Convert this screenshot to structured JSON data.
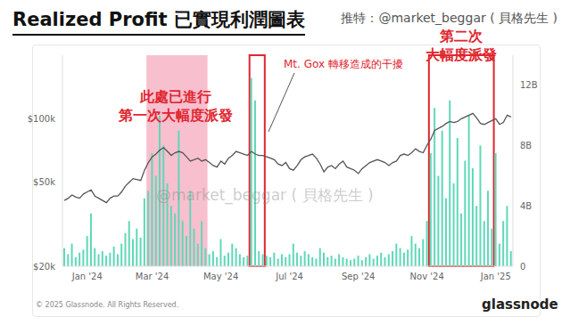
{
  "chart_data": {
    "type": "combo",
    "title": "Realized Profit 已實現利潤圖表",
    "subtitle": "推特：@market_beggar ( 貝格先生 )",
    "watermark": "@market_beggar ( 貝格先生 )",
    "annotations": [
      {
        "text": "此處已進行\n第一次大幅度派發"
      },
      {
        "text": "Mt. Gox 轉移造成的干擾"
      },
      {
        "text": "第二次\n大幅度派發"
      }
    ],
    "source": "© 2025 Glassnode. All Rights Reserved.",
    "logo": "glassnode",
    "grid": false,
    "log": "y",
    "categories": [
      null,
      null,
      null,
      null,
      null,
      null,
      "Jan '24",
      null,
      null,
      null,
      null,
      null,
      null,
      null,
      null,
      null,
      null,
      null,
      null,
      null,
      null,
      null,
      null,
      "Mar '24",
      null,
      null,
      null,
      null,
      null,
      null,
      null,
      null,
      null,
      null,
      null,
      null,
      null,
      null,
      null,
      null,
      null,
      "May '24",
      null,
      null,
      null,
      null,
      null,
      null,
      null,
      null,
      null,
      null,
      null,
      null,
      null,
      null,
      null,
      null,
      null,
      "Jul '24",
      null,
      null,
      null,
      null,
      null,
      null,
      null,
      null,
      null,
      null,
      null,
      null,
      null,
      null,
      null,
      null,
      null,
      "Sep '24",
      null,
      null,
      null,
      null,
      null,
      null,
      null,
      null,
      null,
      null,
      null,
      null,
      null,
      null,
      null,
      null,
      null,
      "Nov '24",
      null,
      null,
      null,
      null,
      null,
      null,
      null,
      null,
      null,
      null,
      null,
      null,
      null,
      null,
      null,
      null,
      null,
      "Jan '25",
      null,
      null,
      null,
      null
    ],
    "ylim": [
      20000,
      200000
    ],
    "yticks": [
      {
        "value": 20000,
        "label": "$20k"
      },
      {
        "value": 50000,
        "label": "$50k"
      },
      {
        "value": 100000,
        "label": "$100k"
      }
    ],
    "y2lim": [
      0,
      14
    ],
    "y2ticks": [
      0,
      {
        "value": 4,
        "label": "4B"
      },
      {
        "value": 8,
        "label": "8B"
      },
      {
        "value": 12,
        "label": "12B"
      }
    ],
    "series": [
      {
        "type": "bar",
        "axis": "y2",
        "color": "#5fd8b8",
        "values": [
          1.2,
          0.8,
          1.5,
          0.6,
          0.9,
          1.1,
          2.0,
          3.5,
          1.2,
          0.8,
          1.0,
          0.7,
          0.9,
          1.3,
          0.8,
          1.5,
          2.2,
          3.0,
          1.8,
          2.5,
          1.9,
          4.5,
          5.0,
          7.5,
          6.0,
          10.0,
          8.0,
          5.5,
          4.0,
          3.5,
          9.0,
          3.0,
          2.0,
          5.0,
          2.5,
          1.5,
          3.0,
          1.2,
          0.8,
          1.0,
          0.6,
          1.8,
          0.7,
          0.9,
          1.5,
          1.2,
          0.8,
          0.6,
          0.7,
          12.5,
          11.0,
          1.0,
          0.8,
          0.7,
          0.6,
          0.9,
          0.5,
          0.8,
          0.6,
          0.8,
          1.5,
          0.9,
          0.7,
          1.0,
          0.8,
          0.6,
          0.5,
          1.2,
          0.9,
          0.6,
          0.7,
          0.5,
          0.8,
          0.6,
          0.5,
          0.4,
          0.5,
          0.7,
          0.4,
          0.6,
          0.8,
          0.5,
          0.7,
          0.9,
          0.6,
          0.8,
          1.0,
          1.5,
          1.2,
          0.9,
          1.1,
          2.0,
          1.5,
          1.2,
          1.8,
          3.0,
          7.5,
          10.5,
          6.0,
          9.0,
          4.5,
          11.0,
          5.5,
          8.5,
          3.5,
          7.0,
          10.0,
          6.5,
          4.0,
          8.0,
          3.0,
          5.0,
          2.5,
          7.5,
          1.5,
          3.0,
          4.0,
          1.0
        ]
      },
      {
        "type": "line",
        "color": "#555555",
        "values": [
          41000,
          42000,
          43500,
          42500,
          42000,
          44000,
          45000,
          46000,
          43000,
          42000,
          41000,
          40000,
          42000,
          43000,
          43000,
          45000,
          48000,
          50000,
          52000,
          51500,
          51000,
          57000,
          62000,
          66000,
          68000,
          71000,
          73000,
          70000,
          67000,
          69000,
          70000,
          69000,
          66000,
          63000,
          64000,
          65000,
          63000,
          64000,
          62000,
          60000,
          59000,
          63000,
          61000,
          65000,
          67000,
          70000,
          69000,
          68000,
          67000,
          70000,
          68000,
          67000,
          67000,
          66000,
          65000,
          64000,
          61000,
          60000,
          62000,
          58000,
          57000,
          60000,
          64000,
          66000,
          67000,
          68000,
          65000,
          61000,
          56000,
          59000,
          60000,
          58000,
          61000,
          63000,
          59000,
          58000,
          57000,
          55000,
          58000,
          60000,
          62000,
          63000,
          64000,
          63000,
          62000,
          60000,
          62000,
          63000,
          67000,
          68000,
          67000,
          69000,
          72000,
          70000,
          69000,
          75000,
          80000,
          88000,
          90000,
          92000,
          95000,
          97000,
          96000,
          97000,
          100000,
          102000,
          104000,
          106000,
          101000,
          95000,
          94000,
          96000,
          98000,
          100000,
          94000,
          96000,
          104000,
          102000
        ]
      }
    ]
  }
}
